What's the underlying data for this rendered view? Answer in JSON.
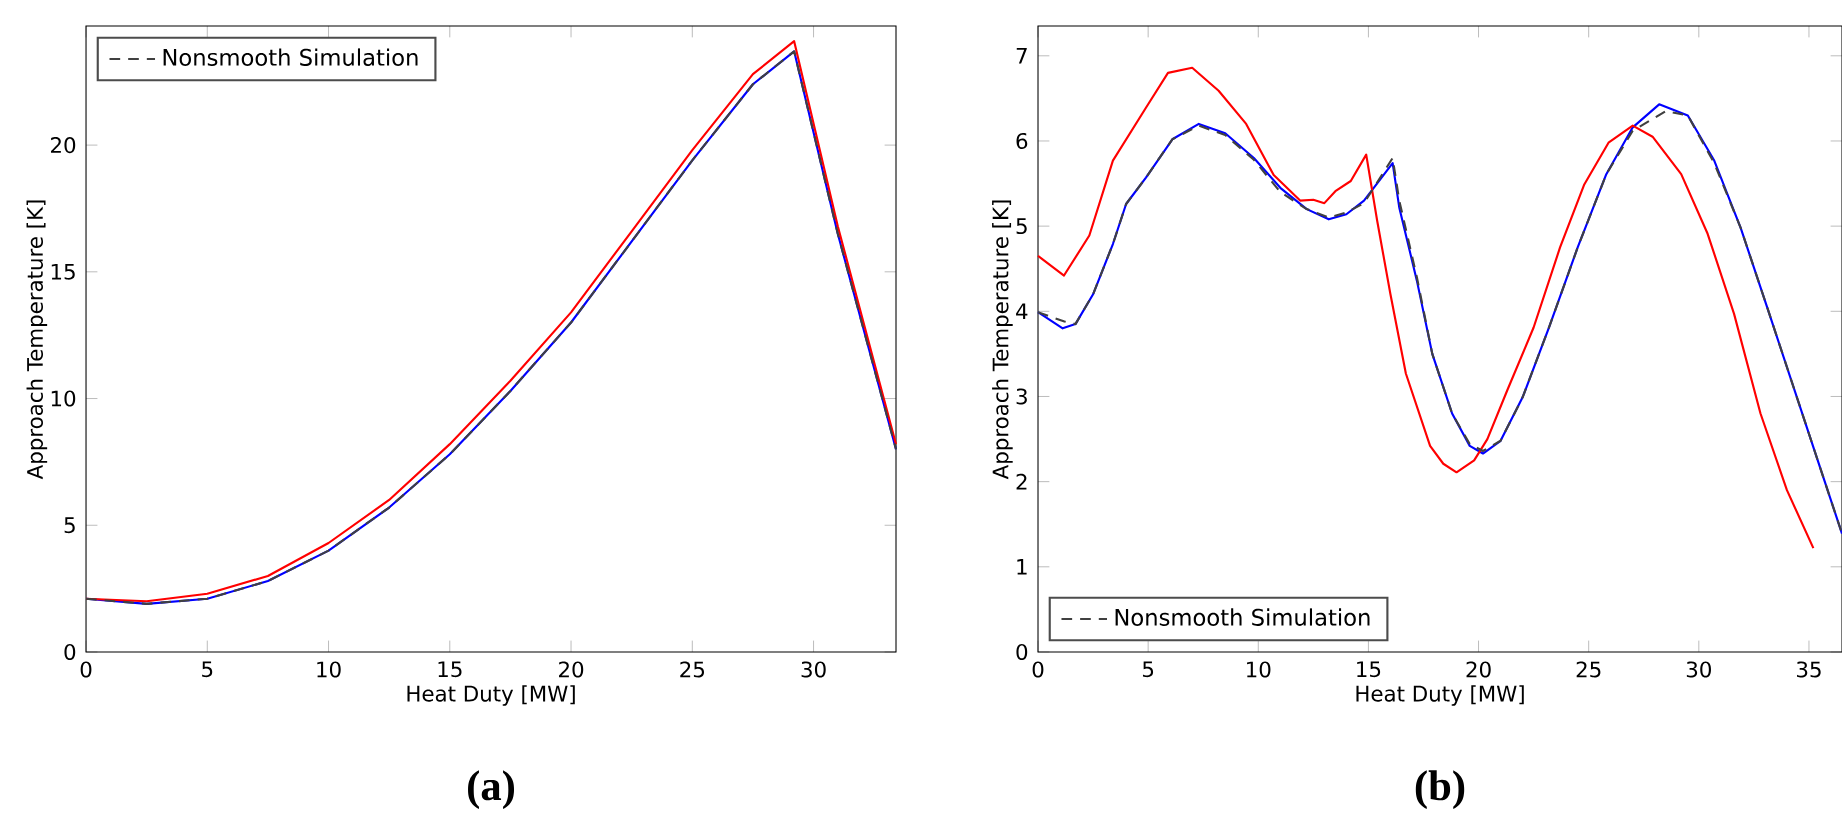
{
  "chart_data": [
    {
      "type": "line",
      "xlabel": "Heat Duty [MW]",
      "ylabel": "Approach Temperature [K]",
      "annotations": [
        "(a)"
      ],
      "xlim": [
        0,
        33.4
      ],
      "ylim": [
        0,
        24.7
      ],
      "xticks": [
        0,
        5,
        10,
        15,
        20,
        25,
        30
      ],
      "yticks": [
        0,
        5,
        10,
        15,
        20
      ],
      "legend": "top left",
      "grid": false,
      "series": [
        {
          "name": "Nonsmooth Simulation",
          "color": "#404040",
          "line_style": "dashed",
          "x": [
            0,
            2.5,
            5,
            7.5,
            10,
            12.5,
            15,
            17.5,
            20,
            22.5,
            25,
            27.5,
            29.2,
            31,
            33.4
          ],
          "values": [
            2.1,
            1.9,
            2.1,
            2.8,
            4.0,
            5.7,
            7.8,
            10.3,
            13.0,
            16.2,
            19.4,
            22.4,
            23.7,
            16.5,
            8.0
          ]
        },
        {
          "color": "#ff0000",
          "line_style": "solid",
          "x": [
            0,
            2.5,
            5,
            7.5,
            10,
            12.5,
            15,
            17.5,
            20,
            22.5,
            25,
            27.5,
            29.2,
            31,
            33.4
          ],
          "values": [
            2.1,
            2.0,
            2.3,
            3.0,
            4.3,
            6.0,
            8.2,
            10.7,
            13.4,
            16.6,
            19.8,
            22.8,
            24.1,
            16.8,
            8.2
          ]
        },
        {
          "color": "#0000ff",
          "line_style": "solid",
          "x": [
            0,
            2.5,
            5,
            7.5,
            10,
            12.5,
            15,
            17.5,
            20,
            22.5,
            25,
            27.5,
            29.2,
            31,
            33.4
          ],
          "values": [
            2.1,
            1.9,
            2.1,
            2.8,
            4.0,
            5.7,
            7.8,
            10.3,
            13.0,
            16.2,
            19.4,
            22.4,
            23.7,
            16.5,
            8.0
          ]
        }
      ]
    },
    {
      "type": "line",
      "xlabel": "Heat Duty [MW]",
      "ylabel": "Approach Temperature [K]",
      "annotations": [
        "(b)"
      ],
      "xlim": [
        0,
        36.5
      ],
      "ylim": [
        0,
        7.35
      ],
      "xticks": [
        0,
        5,
        10,
        15,
        20,
        25,
        30,
        35
      ],
      "yticks": [
        0,
        1,
        2,
        3,
        4,
        5,
        6,
        7
      ],
      "legend": "bottom left",
      "grid": false,
      "series": [
        {
          "name": "Nonsmooth Simulation",
          "color": "#404040",
          "line_style": "dashed",
          "x": [
            0,
            1.2,
            1.7,
            2.5,
            3.4,
            4.0,
            4.9,
            6.1,
            7.3,
            8.5,
            9.8,
            11.0,
            12.2,
            13.2,
            14.0,
            14.8,
            16.1,
            16.4,
            17.2,
            17.9,
            18.8,
            19.6,
            20.2,
            21.0,
            22.0,
            23.2,
            24.5,
            25.8,
            27.0,
            28.5,
            29.5,
            30.7,
            31.9,
            33.1,
            34.3,
            35.5,
            36.5
          ],
          "values": [
            3.99,
            3.88,
            3.85,
            4.2,
            4.79,
            5.26,
            5.57,
            6.02,
            6.18,
            6.07,
            5.78,
            5.4,
            5.2,
            5.1,
            5.16,
            5.27,
            5.8,
            5.3,
            4.4,
            3.5,
            2.8,
            2.44,
            2.36,
            2.48,
            2.99,
            3.81,
            4.75,
            5.61,
            6.12,
            6.35,
            6.3,
            5.74,
            4.98,
            4.05,
            3.11,
            2.17,
            1.39
          ]
        },
        {
          "color": "#ff0000",
          "line_style": "solid",
          "x": [
            0,
            1.18,
            2.33,
            3.4,
            4.9,
            5.9,
            7.0,
            8.2,
            9.45,
            10.7,
            11.9,
            12.5,
            13.0,
            13.5,
            14.2,
            14.9,
            15.4,
            16.0,
            16.7,
            17.8,
            18.4,
            19.0,
            19.8,
            20.4,
            21.3,
            22.5,
            23.7,
            24.8,
            25.9,
            27.0,
            27.9,
            29.2,
            30.4,
            31.6,
            32.8,
            34.0,
            35.2
          ],
          "values": [
            4.65,
            4.42,
            4.89,
            5.77,
            6.39,
            6.8,
            6.86,
            6.59,
            6.2,
            5.6,
            5.3,
            5.31,
            5.27,
            5.41,
            5.53,
            5.84,
            5.06,
            4.2,
            3.27,
            2.42,
            2.21,
            2.11,
            2.25,
            2.5,
            3.07,
            3.81,
            4.75,
            5.49,
            5.98,
            6.18,
            6.05,
            5.61,
            4.91,
            3.97,
            2.8,
            1.9,
            1.22
          ]
        },
        {
          "color": "#0000ff",
          "line_style": "solid",
          "x": [
            0,
            1.12,
            1.7,
            2.5,
            3.4,
            4.0,
            4.9,
            6.1,
            7.3,
            8.5,
            9.8,
            11.0,
            12.2,
            13.2,
            14.0,
            14.8,
            16.1,
            16.4,
            17.2,
            17.9,
            18.8,
            19.6,
            20.2,
            21.0,
            22.0,
            23.2,
            24.5,
            25.8,
            27.0,
            28.2,
            29.5,
            30.7,
            31.9,
            33.1,
            34.3,
            35.5,
            36.5
          ],
          "values": [
            3.99,
            3.8,
            3.85,
            4.2,
            4.79,
            5.26,
            5.57,
            6.02,
            6.2,
            6.09,
            5.8,
            5.45,
            5.2,
            5.08,
            5.14,
            5.3,
            5.74,
            5.22,
            4.36,
            3.5,
            2.8,
            2.42,
            2.33,
            2.48,
            2.99,
            3.81,
            4.75,
            5.61,
            6.16,
            6.43,
            6.3,
            5.77,
            4.98,
            4.05,
            3.11,
            2.17,
            1.39
          ]
        }
      ]
    }
  ]
}
